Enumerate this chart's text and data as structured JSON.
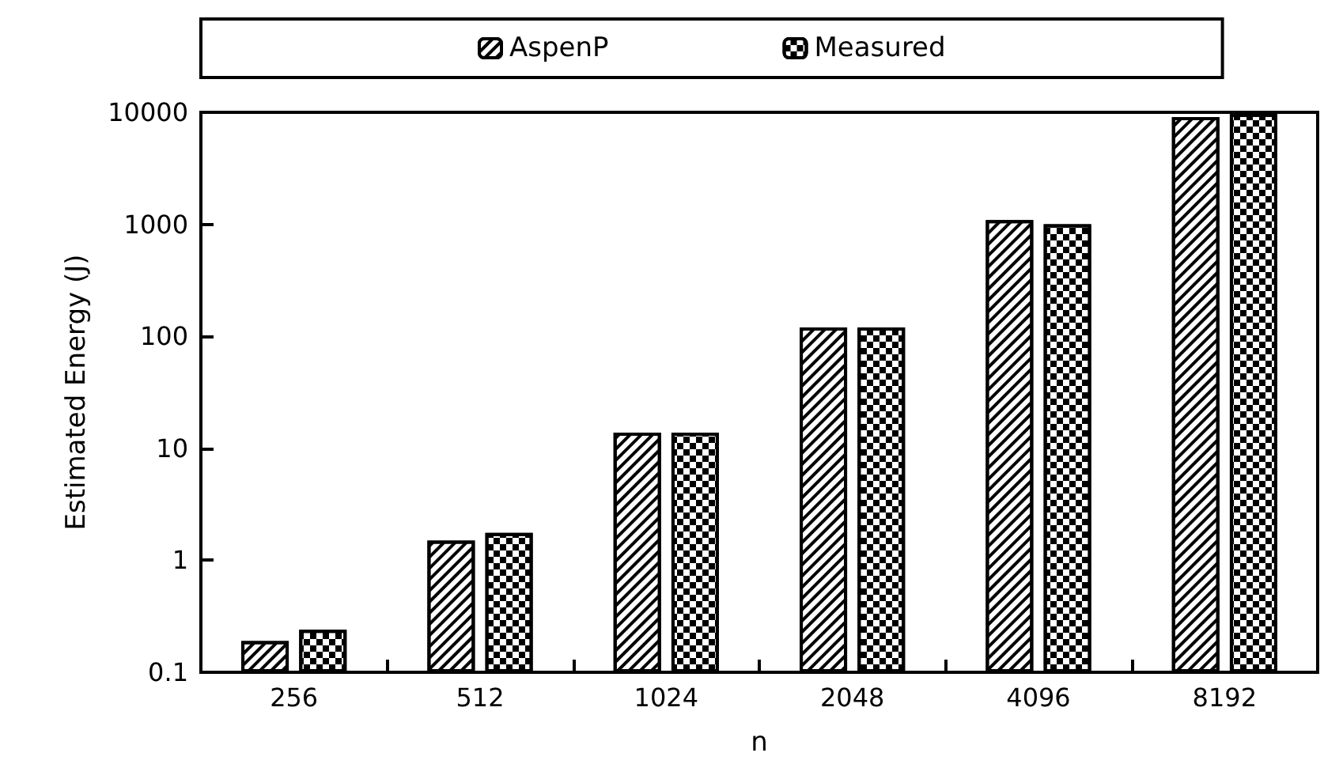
{
  "chart_data": {
    "type": "bar",
    "xlabel": "n",
    "ylabel": "Estimated Energy (J)",
    "categories": [
      "256",
      "512",
      "1024",
      "2048",
      "4096",
      "8192"
    ],
    "series": [
      {
        "name": "AspenP",
        "color": "#ffffff",
        "values": [
          0.19,
          1.5,
          13.8,
          120,
          1090,
          9060
        ]
      },
      {
        "name": "Measured",
        "color": "#ffffff",
        "values": [
          0.24,
          1.76,
          13.8,
          120,
          1000,
          9700
        ]
      }
    ],
    "log": true,
    "ylim": [
      0.1,
      10000
    ],
    "yticks": [
      0.1,
      1,
      10,
      100,
      1000,
      10000
    ],
    "grid": false,
    "legend": "top"
  }
}
